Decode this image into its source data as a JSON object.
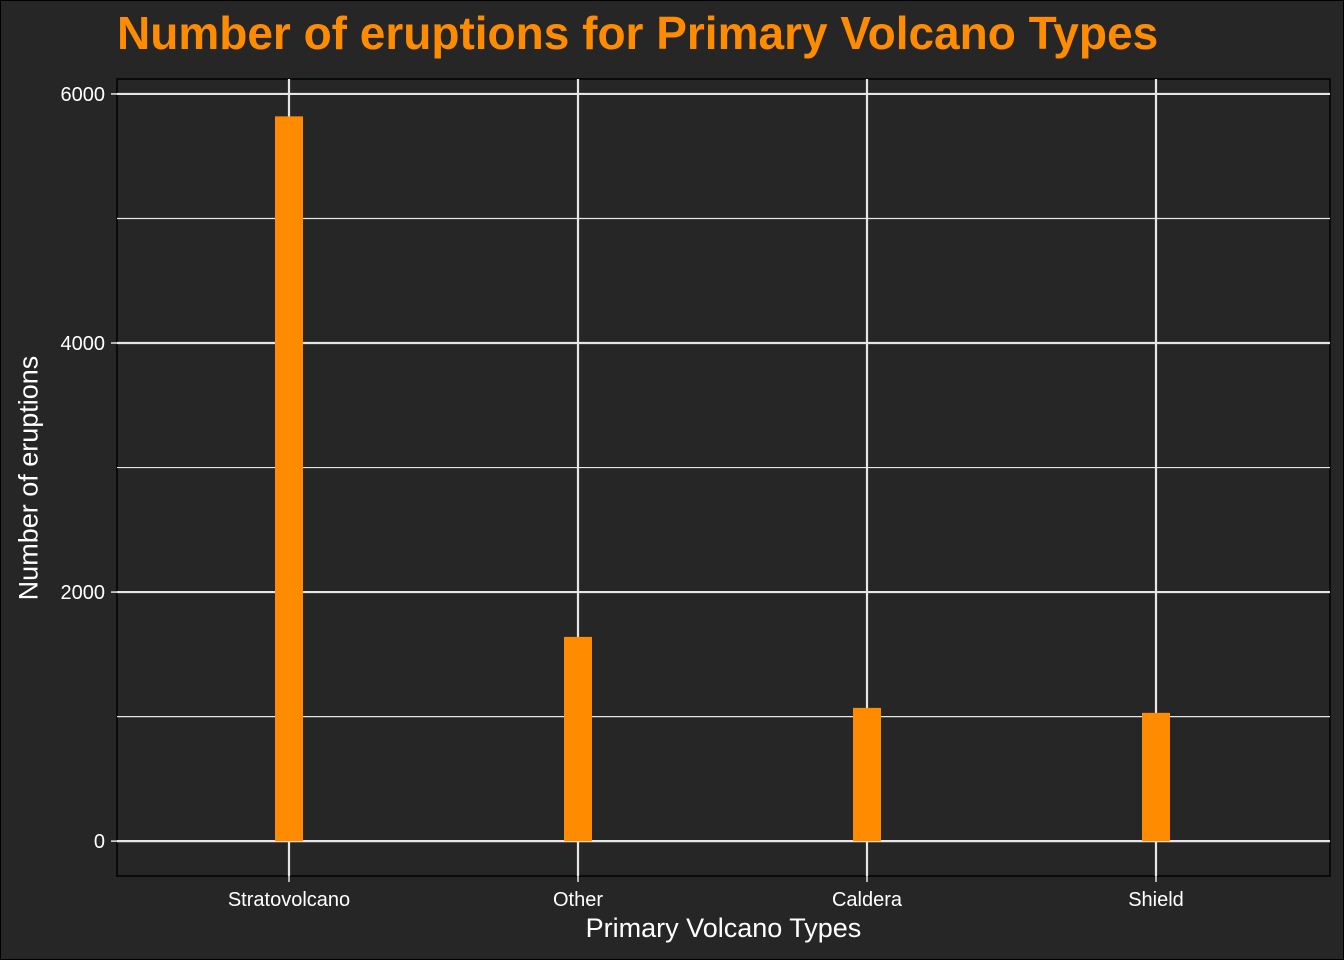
{
  "chart_data": {
    "type": "bar",
    "title": "Number of eruptions for Primary Volcano Types",
    "xlabel": "Primary Volcano Types",
    "ylabel": "Number of eruptions",
    "categories": [
      "Stratovolcano",
      "Other",
      "Caldera",
      "Shield"
    ],
    "values": [
      5820,
      1640,
      1070,
      1030
    ],
    "ylim": [
      -280,
      6120
    ],
    "yticks": [
      0,
      2000,
      4000,
      6000
    ],
    "ytick_labels": [
      "0",
      "2000",
      "4000",
      "6000"
    ],
    "grid": true,
    "legend": "none"
  },
  "colors": {
    "background": "#262626",
    "bar": "#ff8c00",
    "title": "#ff8c00",
    "grid": "#e6e6e6",
    "text": "#ffffff"
  }
}
